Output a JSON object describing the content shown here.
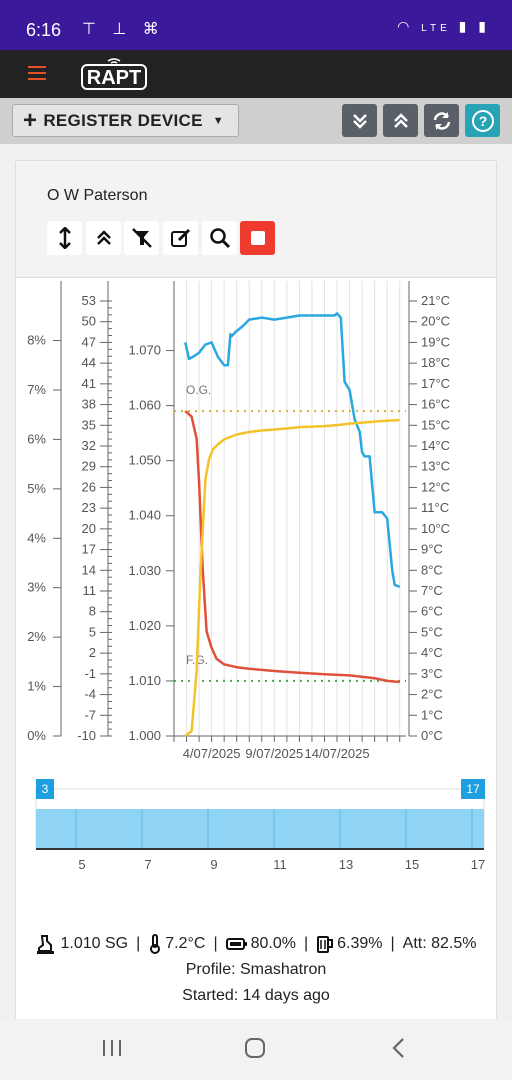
{
  "status_bar": {
    "time": "6:16",
    "network": "LTE"
  },
  "app": {
    "logo_text": "RAPT",
    "menu_icon": "hamburger-icon"
  },
  "toolbar": {
    "register_label": "REGISTER DEVICE",
    "buttons": [
      "collapse-all-icon",
      "expand-all-icon",
      "refresh-icon",
      "help-icon"
    ]
  },
  "device": {
    "name": "O W Paterson",
    "actions": [
      "expand-vertical-icon",
      "collapse-icon",
      "notifications-off-icon",
      "edit-icon",
      "search-icon",
      "stop-icon"
    ]
  },
  "colors": {
    "gravity": "#e1503a",
    "temperature": "#29a8e0",
    "abv": "#f5c22a",
    "og_line": "#d6b13a",
    "fg_line": "#4aa84a",
    "navigator_fill": "#8fd3f5",
    "navigator_handle": "#1ea0e0",
    "stop_button": "#ef3b2f",
    "help_button": "#27a3b5"
  },
  "chart_data": {
    "type": "line",
    "x_labels": [
      "4/07/2025",
      "9/07/2025",
      "14/07/2025"
    ],
    "abv_axis": {
      "ticks": [
        "0%",
        "1%",
        "2%",
        "3%",
        "4%",
        "5%",
        "6%",
        "7%",
        "8%"
      ],
      "ylim": [
        0,
        8.8
      ]
    },
    "attenuation_axis": {
      "ticks": [
        "-10",
        "-7",
        "-4",
        "-1",
        "2",
        "5",
        "8",
        "11",
        "14",
        "17",
        "20",
        "23",
        "26",
        "29",
        "32",
        "35",
        "38",
        "41",
        "44",
        "47",
        "50",
        "53"
      ],
      "ylim": [
        -10,
        53
      ]
    },
    "gravity_axis": {
      "ticks": [
        "1.000",
        "1.010",
        "1.020",
        "1.030",
        "1.040",
        "1.050",
        "1.060",
        "1.070"
      ],
      "ylim": [
        1.0,
        1.079
      ]
    },
    "temperature_axis": {
      "ticks": [
        "0°C",
        "1°C",
        "2°C",
        "3°C",
        "4°C",
        "5°C",
        "6°C",
        "7°C",
        "8°C",
        "9°C",
        "10°C",
        "11°C",
        "12°C",
        "13°C",
        "14°C",
        "15°C",
        "16°C",
        "17°C",
        "18°C",
        "19°C",
        "20°C",
        "21°C"
      ],
      "ylim": [
        0,
        21
      ]
    },
    "reference_lines": [
      {
        "label": "O.G.",
        "value": 1.059
      },
      {
        "label": "F.G.",
        "value": 1.01
      }
    ],
    "series": [
      {
        "name": "Gravity",
        "axis": "gravity",
        "x": [
          1.9,
          2.4,
          2.8,
          3.0,
          3.3,
          3.6,
          4.0,
          4.4,
          5.0,
          6.0,
          7.0,
          8.0,
          9.0,
          11.0,
          13.0,
          15.0,
          17.0,
          18.0,
          19.0
        ],
        "y": [
          1.059,
          1.058,
          1.054,
          1.046,
          1.03,
          1.019,
          1.016,
          1.014,
          1.013,
          1.0125,
          1.0122,
          1.012,
          1.0118,
          1.0115,
          1.0112,
          1.011,
          1.0105,
          1.01,
          1.0098
        ]
      },
      {
        "name": "Temperature",
        "axis": "temperature",
        "x": [
          1.9,
          2.2,
          2.5,
          3.0,
          3.5,
          4.0,
          4.5,
          5.0,
          5.3,
          5.5,
          5.6,
          5.9,
          6.5,
          7.0,
          8.0,
          9.0,
          10.0,
          11.0,
          12.0,
          13.0,
          13.8,
          14.0,
          14.3,
          14.6,
          15.0,
          15.4,
          15.8,
          16.0,
          16.2,
          16.6,
          17.0,
          17.6,
          18.0,
          18.4,
          18.6,
          19.0
        ],
        "y": [
          19.0,
          18.2,
          18.3,
          18.5,
          18.9,
          19.0,
          18.3,
          17.9,
          17.9,
          19.4,
          19.3,
          19.5,
          19.8,
          20.1,
          20.2,
          20.1,
          20.2,
          20.3,
          20.3,
          20.3,
          20.3,
          20.4,
          20.2,
          17.1,
          16.7,
          15.3,
          14.7,
          13.7,
          13.5,
          13.5,
          10.8,
          10.8,
          10.5,
          8.0,
          7.3,
          7.2
        ]
      },
      {
        "name": "ABV",
        "axis": "abv",
        "x": [
          1.9,
          2.4,
          2.8,
          3.1,
          3.5,
          3.8,
          4.1,
          4.5,
          5.0,
          5.5,
          6.0,
          7.0,
          8.0,
          9.0,
          10.0,
          11.0,
          12.0,
          13.0,
          14.0,
          15.0,
          16.0,
          17.0,
          18.0,
          19.0
        ],
        "y": [
          0.0,
          0.1,
          1.3,
          3.2,
          5.2,
          5.6,
          5.8,
          5.9,
          6.0,
          6.05,
          6.1,
          6.15,
          6.18,
          6.2,
          6.22,
          6.25,
          6.26,
          6.27,
          6.29,
          6.32,
          6.34,
          6.36,
          6.38,
          6.39
        ]
      }
    ],
    "x_range": [
      1,
      19.5
    ]
  },
  "navigator": {
    "start_badge": "3",
    "end_badge": "17",
    "ticks": [
      "5",
      "7",
      "9",
      "11",
      "13",
      "15",
      "17"
    ]
  },
  "summary": {
    "gravity": "1.010 SG",
    "temperature": "7.2°C",
    "battery": "80.0%",
    "abv": "6.39%",
    "attenuation": "Att: 82.5%",
    "separator": "|",
    "profile": "Profile: Smashatron",
    "started": "Started: 14 days ago"
  }
}
